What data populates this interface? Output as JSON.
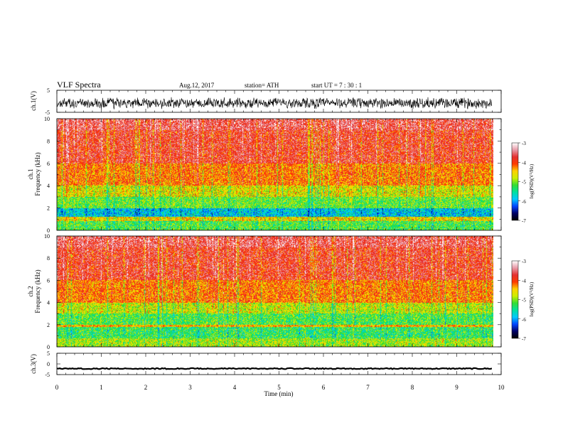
{
  "header": {
    "title": "VLF  Spectra",
    "date": "Aug.12, 2017",
    "station": "station= ATH",
    "start": "start  UT  =   7  : 30 : 1"
  },
  "chart_data": [
    {
      "type": "line",
      "panel": "ch1-waveform",
      "ylabel": "ch.1(V)",
      "ylim": [
        -5,
        5
      ],
      "yticks": [
        {
          "v": 5,
          "label": "5"
        },
        {
          "v": -5,
          "label": "-5"
        }
      ],
      "xlim": [
        0,
        10
      ],
      "baseline": -0.8,
      "amplitude": 2.0,
      "color": "#000000"
    },
    {
      "type": "heatmap",
      "panel": "ch1-spectrogram",
      "ylabel": "ch.1\nFrequency  (kHz)",
      "ylim": [
        0,
        10
      ],
      "yticks": [
        0,
        2,
        4,
        6,
        8,
        10
      ],
      "xlim": [
        0,
        10
      ],
      "colorbar": {
        "label": "log(PSD)(V²/Hz)",
        "range": [
          -7,
          -3
        ],
        "ticks": [
          -3,
          -4,
          -5,
          -6,
          -7
        ],
        "colors": [
          "#ffffff",
          "#e89aa8",
          "#e53030",
          "#ff3a00",
          "#ffd000",
          "#ccee00",
          "#33dd33",
          "#00e0a0",
          "#00c8ff",
          "#0044ff",
          "#000066",
          "#000000"
        ]
      },
      "bands": [
        {
          "f": [
            9.0,
            10.0
          ],
          "level": -3.6
        },
        {
          "f": [
            6.0,
            9.0
          ],
          "level": -3.8
        },
        {
          "f": [
            4.0,
            6.0
          ],
          "level": -4.2
        },
        {
          "f": [
            3.0,
            4.0
          ],
          "level": -4.7
        },
        {
          "f": [
            2.0,
            3.0
          ],
          "level": -5.1
        },
        {
          "f": [
            1.2,
            2.0
          ],
          "level": -5.8
        },
        {
          "f": [
            0.8,
            1.2
          ],
          "level": -4.6
        },
        {
          "f": [
            0.0,
            0.8
          ],
          "level": -5.2
        }
      ]
    },
    {
      "type": "heatmap",
      "panel": "ch2-spectrogram",
      "ylabel": "ch.2\nFrequency  (kHz)",
      "ylim": [
        0,
        10
      ],
      "yticks": [
        0,
        2,
        4,
        6,
        8,
        10
      ],
      "xlim": [
        0,
        10
      ],
      "colorbar": {
        "label": "log(PSD)(V²/Hz)",
        "range": [
          -7,
          -3
        ],
        "ticks": [
          -3,
          -4,
          -5,
          -6,
          -7
        ],
        "colors": [
          "#ffffff",
          "#e89aa8",
          "#e53030",
          "#ff3a00",
          "#ffd000",
          "#ccee00",
          "#33dd33",
          "#00e0a0",
          "#00c8ff",
          "#0044ff",
          "#000066",
          "#000000"
        ]
      },
      "bands": [
        {
          "f": [
            9.0,
            10.0
          ],
          "level": -3.6
        },
        {
          "f": [
            6.0,
            9.0
          ],
          "level": -3.8
        },
        {
          "f": [
            4.0,
            6.0
          ],
          "level": -4.2
        },
        {
          "f": [
            3.0,
            4.0
          ],
          "level": -4.8
        },
        {
          "f": [
            2.0,
            3.0
          ],
          "level": -5.2
        },
        {
          "f": [
            1.8,
            2.0
          ],
          "level": -4.4
        },
        {
          "f": [
            0.8,
            1.8
          ],
          "level": -5.3
        },
        {
          "f": [
            0.0,
            0.8
          ],
          "level": -4.9
        }
      ]
    },
    {
      "type": "line",
      "panel": "ch3-waveform",
      "ylabel": "ch.3(V)",
      "ylim": [
        -5,
        5
      ],
      "yticks": [
        {
          "v": 5,
          "label": "5"
        },
        {
          "v": 0,
          "label": "0"
        },
        {
          "v": -5,
          "label": "-5"
        }
      ],
      "xlim": [
        0,
        10
      ],
      "xlabel": "Time  (min)",
      "xticks": [
        0,
        1,
        2,
        3,
        4,
        5,
        6,
        7,
        8,
        9,
        10
      ],
      "baseline": -2.2,
      "amplitude": 0.25,
      "color": "#000000"
    }
  ],
  "data_end_min": 9.82
}
